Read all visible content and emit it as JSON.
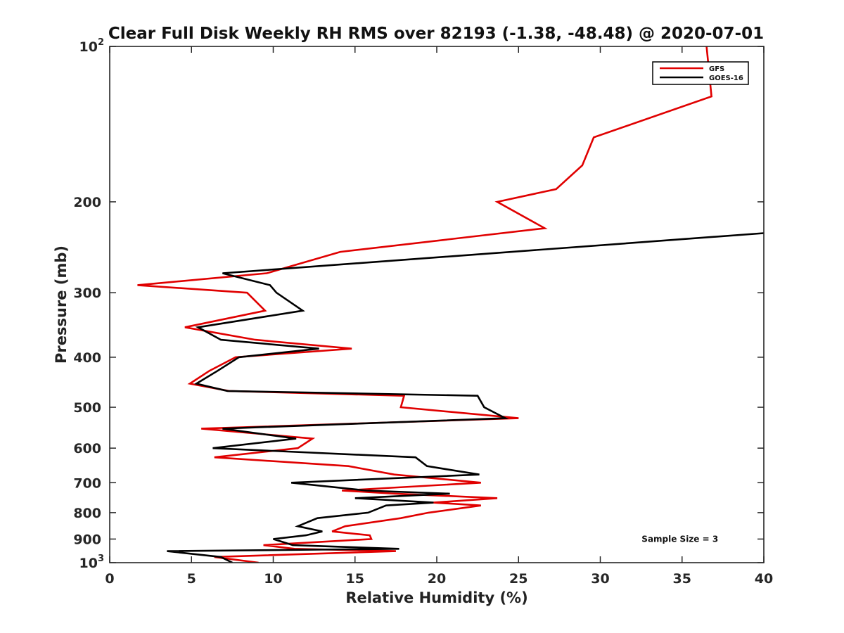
{
  "chart_data": {
    "type": "line",
    "title": "Clear Full Disk Weekly RH RMS over 82193 (-1.38, -48.48) @ 2020-07-01",
    "xlabel": "Relative Humidity (%)",
    "ylabel": "Pressure (mb)",
    "xlim": [
      0,
      40
    ],
    "ylim": [
      100,
      1000
    ],
    "y_scale": "log",
    "y_reversed": true,
    "x_ticks": [
      0,
      5,
      10,
      15,
      20,
      25,
      30,
      35,
      40
    ],
    "y_ticks": [
      {
        "value": 100,
        "label": "10",
        "sup": "2"
      },
      {
        "value": 200,
        "label": "200"
      },
      {
        "value": 300,
        "label": "300"
      },
      {
        "value": 400,
        "label": "400"
      },
      {
        "value": 500,
        "label": "500"
      },
      {
        "value": 600,
        "label": "600"
      },
      {
        "value": 700,
        "label": "700"
      },
      {
        "value": 800,
        "label": "800"
      },
      {
        "value": 900,
        "label": "900"
      },
      {
        "value": 1000,
        "label": "10",
        "sup": "3"
      }
    ],
    "grid": false,
    "legend_position": "top-right",
    "series": [
      {
        "name": "GFS",
        "color": "#e00000",
        "points": [
          [
            36.5,
            100
          ],
          [
            36.8,
            125
          ],
          [
            29.6,
            150
          ],
          [
            28.9,
            170
          ],
          [
            27.3,
            189
          ],
          [
            23.7,
            200
          ],
          [
            26.6,
            225
          ],
          [
            14.1,
            250
          ],
          [
            9.6,
            275
          ],
          [
            1.7,
            290
          ],
          [
            8.4,
            300
          ],
          [
            9.5,
            325
          ],
          [
            4.6,
            350
          ],
          [
            8.9,
            370
          ],
          [
            14.8,
            385
          ],
          [
            7.7,
            400
          ],
          [
            6.1,
            425
          ],
          [
            4.9,
            450
          ],
          [
            7.3,
            465
          ],
          [
            18.0,
            475
          ],
          [
            17.8,
            500
          ],
          [
            25.0,
            525
          ],
          [
            5.6,
            550
          ],
          [
            12.4,
            575
          ],
          [
            11.5,
            600
          ],
          [
            6.4,
            625
          ],
          [
            14.6,
            650
          ],
          [
            17.4,
            675
          ],
          [
            22.7,
            700
          ],
          [
            14.2,
            725
          ],
          [
            17.5,
            735
          ],
          [
            23.7,
            750
          ],
          [
            19.8,
            765
          ],
          [
            22.7,
            775
          ],
          [
            19.5,
            800
          ],
          [
            17.8,
            820
          ],
          [
            14.4,
            850
          ],
          [
            13.6,
            870
          ],
          [
            15.9,
            885
          ],
          [
            16.0,
            900
          ],
          [
            9.4,
            925
          ],
          [
            11.3,
            940
          ],
          [
            17.5,
            950
          ],
          [
            6.4,
            975
          ],
          [
            9.1,
            1000
          ]
        ]
      },
      {
        "name": "GOES-16",
        "color": "#000000",
        "points": [
          [
            40.0,
            230
          ],
          [
            6.9,
            275
          ],
          [
            9.8,
            290
          ],
          [
            10.2,
            300
          ],
          [
            11.8,
            325
          ],
          [
            5.4,
            350
          ],
          [
            6.8,
            370
          ],
          [
            12.8,
            385
          ],
          [
            7.9,
            400
          ],
          [
            6.6,
            425
          ],
          [
            5.3,
            450
          ],
          [
            7.2,
            465
          ],
          [
            22.5,
            475
          ],
          [
            22.9,
            500
          ],
          [
            24.2,
            525
          ],
          [
            6.9,
            550
          ],
          [
            11.4,
            575
          ],
          [
            6.3,
            600
          ],
          [
            18.7,
            625
          ],
          [
            19.4,
            650
          ],
          [
            22.6,
            675
          ],
          [
            11.1,
            700
          ],
          [
            15.7,
            725
          ],
          [
            20.8,
            735
          ],
          [
            15.0,
            750
          ],
          [
            19.8,
            765
          ],
          [
            16.9,
            775
          ],
          [
            15.8,
            800
          ],
          [
            12.7,
            820
          ],
          [
            11.5,
            850
          ],
          [
            13.0,
            870
          ],
          [
            12.0,
            885
          ],
          [
            10.0,
            900
          ],
          [
            11.2,
            925
          ],
          [
            17.7,
            940
          ],
          [
            3.5,
            950
          ],
          [
            6.8,
            975
          ],
          [
            7.5,
            1000
          ]
        ]
      }
    ],
    "annotations": [
      {
        "text": "Sample Size = 3",
        "x": 35,
        "y": 900
      }
    ]
  }
}
